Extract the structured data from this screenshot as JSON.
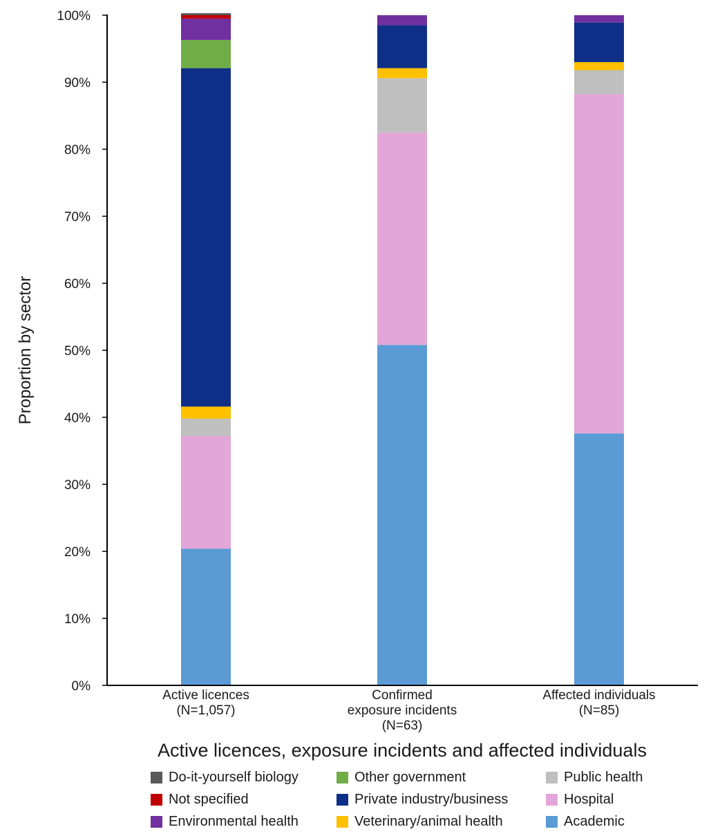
{
  "chart_data": {
    "type": "bar",
    "stacked": true,
    "ylabel": "Proportion by sector",
    "xlabel": "Active licences, exposure incidents and affected individuals",
    "ylim": [
      0,
      100
    ],
    "yticks": [
      "0%",
      "10%",
      "20%",
      "30%",
      "40%",
      "50%",
      "60%",
      "70%",
      "80%",
      "90%",
      "100%"
    ],
    "categories": [
      [
        "Active licences",
        "(N=1,057)"
      ],
      [
        "Confirmed",
        "exposure incidents",
        "(N=63)"
      ],
      [
        "Affected individuals",
        "(N=85)"
      ]
    ],
    "series": [
      {
        "name": "Academic",
        "color": "#5b9bd5",
        "values": [
          20.4,
          50.8,
          37.6
        ]
      },
      {
        "name": "Hospital",
        "color": "#e3a6d8",
        "values": [
          16.8,
          31.7,
          50.6
        ]
      },
      {
        "name": "Public health",
        "color": "#bfbfbf",
        "values": [
          2.6,
          8.1,
          3.6
        ]
      },
      {
        "name": "Veterinary/animal health",
        "color": "#ffc000",
        "values": [
          1.8,
          1.5,
          1.2
        ]
      },
      {
        "name": "Private industry/business",
        "color": "#0e2f87",
        "values": [
          50.5,
          6.4,
          5.9
        ]
      },
      {
        "name": "Other government",
        "color": "#70ad47",
        "values": [
          4.2,
          0,
          0
        ]
      },
      {
        "name": "Environmental health",
        "color": "#7030a0",
        "values": [
          3.2,
          1.5,
          1.1
        ]
      },
      {
        "name": "Not specified",
        "color": "#c00000",
        "values": [
          0.5,
          0,
          0
        ]
      },
      {
        "name": "Do-it-yourself biology",
        "color": "#595959",
        "values": [
          0.3,
          0,
          0
        ]
      }
    ],
    "legend": {
      "columns": [
        [
          "Do-it-yourself biology",
          "Not specified",
          "Environmental health"
        ],
        [
          "Other government",
          "Private industry/business",
          "Veterinary/animal health"
        ],
        [
          "Public health",
          "Hospital",
          "Academic"
        ]
      ]
    }
  }
}
